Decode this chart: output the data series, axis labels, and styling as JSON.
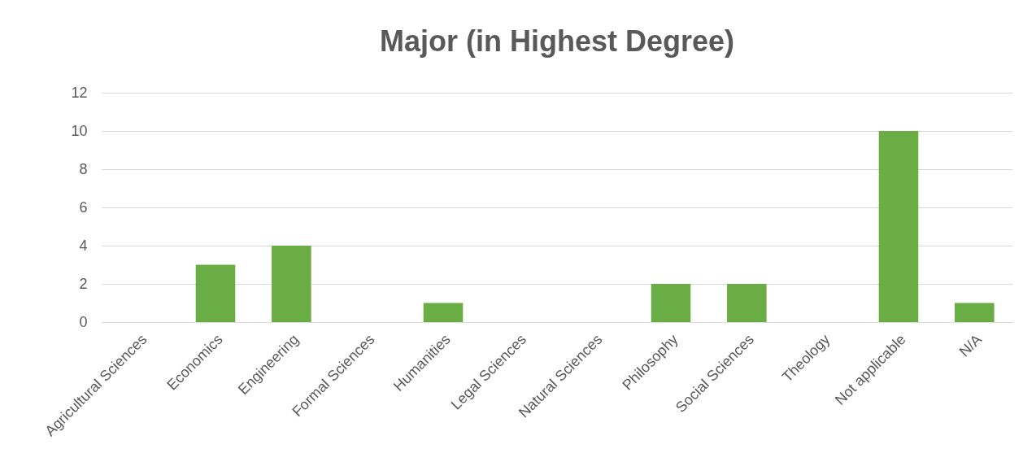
{
  "chart_data": {
    "type": "bar",
    "title": "Major (in Highest Degree)",
    "categories": [
      "Agricultural Sciences",
      "Economics",
      "Engineering",
      "Formal Sciences",
      "Humanities",
      "Legal Sciences",
      "Natural Sciences",
      "Philosophy",
      "Social Sciences",
      "Theology",
      "Not applicable",
      "N/A"
    ],
    "values": [
      0,
      3,
      4,
      0,
      1,
      0,
      0,
      2,
      2,
      0,
      10,
      1
    ],
    "color": "#6aad45",
    "ylim": [
      0,
      12
    ],
    "yticks": [
      0,
      2,
      4,
      6,
      8,
      10,
      12
    ],
    "grid": "y"
  }
}
